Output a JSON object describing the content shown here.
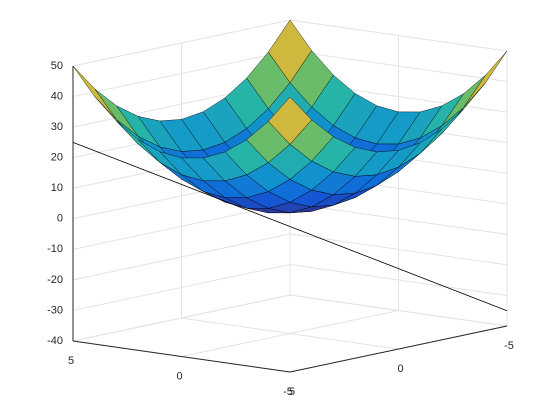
{
  "chart_data": {
    "type": "surface",
    "x": [
      -5,
      -4,
      -3,
      -2,
      -1,
      0,
      1,
      2,
      3,
      4,
      5
    ],
    "y": [
      -5,
      -4,
      -3,
      -2,
      -1,
      0,
      1,
      2,
      3,
      4,
      5
    ],
    "z": [
      [
        50,
        41,
        34,
        29,
        26,
        25,
        26,
        29,
        34,
        41,
        50
      ],
      [
        41,
        32,
        25,
        20,
        17,
        16,
        17,
        20,
        25,
        32,
        41
      ],
      [
        34,
        25,
        18,
        13,
        10,
        9,
        10,
        13,
        18,
        25,
        34
      ],
      [
        29,
        20,
        13,
        8,
        5,
        4,
        5,
        8,
        13,
        20,
        29
      ],
      [
        26,
        17,
        10,
        5,
        2,
        1,
        2,
        5,
        10,
        17,
        26
      ],
      [
        25,
        16,
        9,
        4,
        1,
        0,
        1,
        4,
        9,
        16,
        25
      ],
      [
        26,
        17,
        10,
        5,
        2,
        1,
        2,
        5,
        10,
        17,
        26
      ],
      [
        29,
        20,
        13,
        8,
        5,
        4,
        5,
        8,
        13,
        20,
        29
      ],
      [
        34,
        25,
        18,
        13,
        10,
        9,
        10,
        13,
        18,
        25,
        34
      ],
      [
        41,
        32,
        25,
        20,
        17,
        16,
        17,
        20,
        25,
        32,
        41
      ],
      [
        50,
        41,
        34,
        29,
        26,
        25,
        26,
        29,
        34,
        41,
        50
      ]
    ],
    "colormap": "parula",
    "lines": [
      {
        "x": [
          5,
          -5
        ],
        "y": [
          5,
          -5
        ],
        "z": [
          25,
          -35
        ],
        "color": "#000000"
      }
    ],
    "xlim": [
      -5,
      5
    ],
    "xticks": [
      -5,
      0,
      5
    ],
    "ylim": [
      -5,
      5
    ],
    "yticks": [
      -5,
      0,
      5
    ],
    "zlim": [
      -40,
      50
    ],
    "zticks": [
      -40,
      -30,
      -20,
      -10,
      0,
      10,
      20,
      30,
      40,
      50
    ],
    "grid": true
  }
}
